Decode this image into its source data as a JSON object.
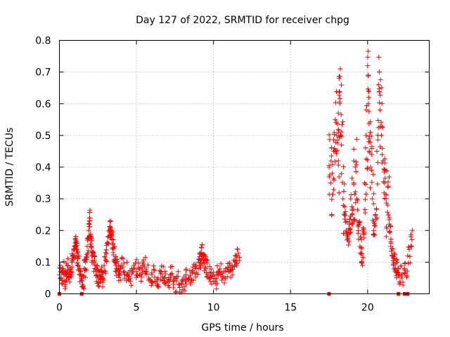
{
  "chart_data": {
    "type": "scatter",
    "title": "Day 127 of 2022, SRMTID for receiver chpg",
    "xlabel": "GPS time / hours",
    "ylabel": "SRMTID / TECUs",
    "xlim": [
      0,
      24
    ],
    "ylim": [
      0,
      0.8
    ],
    "xticks": [
      0,
      5,
      10,
      15,
      20
    ],
    "xtick_labels": [
      "0",
      "5",
      "10",
      "15",
      "20"
    ],
    "yticks": [
      0,
      0.1,
      0.2,
      0.3,
      0.4,
      0.5,
      0.6,
      0.7,
      0.8
    ],
    "ytick_labels": [
      "0",
      "0.1",
      "0.2",
      "0.3",
      "0.4",
      "0.5",
      "0.6",
      "0.7",
      "0.8"
    ],
    "grid": true,
    "marker": "+",
    "color": "#ff0000",
    "series": [
      {
        "name": "SRMTID",
        "x": [
          0.0,
          0.1,
          0.2,
          0.3,
          0.4,
          0.5,
          0.6,
          0.7,
          0.8,
          0.9,
          1.0,
          1.05,
          1.1,
          1.15,
          1.2,
          1.3,
          1.4,
          1.5,
          1.6,
          1.7,
          1.8,
          1.9,
          1.95,
          2.0,
          2.05,
          2.1,
          2.2,
          2.3,
          2.4,
          2.5,
          2.6,
          2.7,
          2.8,
          2.9,
          3.0,
          3.1,
          3.2,
          3.3,
          3.35,
          3.4,
          3.5,
          3.6,
          3.7,
          3.8,
          3.9,
          4.0,
          4.2,
          4.4,
          4.6,
          4.8,
          5.0,
          5.2,
          5.4,
          5.6,
          5.8,
          6.0,
          6.2,
          6.4,
          6.6,
          6.8,
          7.0,
          7.2,
          7.4,
          7.6,
          7.8,
          8.0,
          8.2,
          8.4,
          8.6,
          8.8,
          9.0,
          9.1,
          9.2,
          9.3,
          9.4,
          9.5,
          9.6,
          9.8,
          10.0,
          10.2,
          10.4,
          10.6,
          10.8,
          11.0,
          11.2,
          11.4,
          11.5,
          17.5,
          17.6,
          17.7,
          17.8,
          17.9,
          18.0,
          18.1,
          18.15,
          18.2,
          18.3,
          18.4,
          18.5,
          18.6,
          18.7,
          18.8,
          18.9,
          19.0,
          19.1,
          19.2,
          19.3,
          19.4,
          19.5,
          19.6,
          19.7,
          19.8,
          19.9,
          20.0,
          20.05,
          20.1,
          20.2,
          20.3,
          20.4,
          20.5,
          20.6,
          20.7,
          20.8,
          20.9,
          21.0,
          21.1,
          21.2,
          21.3,
          21.4,
          21.5,
          21.6,
          21.7,
          21.8,
          21.9,
          22.0,
          22.2,
          22.4,
          22.6,
          22.8
        ],
        "y": [
          0.06,
          0.05,
          0.08,
          0.04,
          0.07,
          0.09,
          0.05,
          0.06,
          0.1,
          0.12,
          0.15,
          0.17,
          0.14,
          0.12,
          0.09,
          0.06,
          0.05,
          0.03,
          0.08,
          0.1,
          0.15,
          0.2,
          0.24,
          0.18,
          0.15,
          0.12,
          0.1,
          0.08,
          0.06,
          0.05,
          0.07,
          0.06,
          0.05,
          0.09,
          0.13,
          0.16,
          0.2,
          0.21,
          0.19,
          0.17,
          0.13,
          0.1,
          0.08,
          0.07,
          0.06,
          0.09,
          0.07,
          0.06,
          0.05,
          0.08,
          0.07,
          0.06,
          0.09,
          0.07,
          0.05,
          0.06,
          0.04,
          0.05,
          0.07,
          0.05,
          0.04,
          0.06,
          0.03,
          0.05,
          0.02,
          0.04,
          0.06,
          0.05,
          0.07,
          0.08,
          0.1,
          0.11,
          0.13,
          0.12,
          0.1,
          0.08,
          0.06,
          0.05,
          0.04,
          0.06,
          0.07,
          0.05,
          0.08,
          0.07,
          0.09,
          0.1,
          0.12,
          0.4,
          0.35,
          0.38,
          0.45,
          0.55,
          0.5,
          0.42,
          0.68,
          0.6,
          0.47,
          0.3,
          0.25,
          0.2,
          0.18,
          0.22,
          0.3,
          0.25,
          0.35,
          0.4,
          0.3,
          0.2,
          0.15,
          0.1,
          0.2,
          0.35,
          0.5,
          0.72,
          0.6,
          0.45,
          0.4,
          0.3,
          0.2,
          0.25,
          0.45,
          0.66,
          0.58,
          0.5,
          0.42,
          0.35,
          0.3,
          0.28,
          0.22,
          0.15,
          0.12,
          0.1,
          0.08,
          0.07,
          0.06,
          0.05,
          0.08,
          0.12,
          0.18
        ],
        "zero_markers_x": [
          0.0,
          1.45,
          17.5,
          22.0,
          22.4,
          22.6
        ]
      }
    ]
  }
}
